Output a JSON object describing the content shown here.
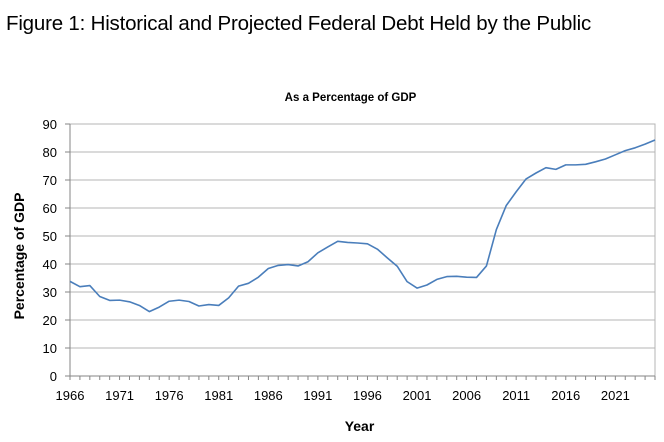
{
  "figure": {
    "title": "Figure 1: Historical and Projected Federal Debt Held by the Public"
  },
  "chart_data": {
    "type": "line",
    "title": "As a Percentage of GDP",
    "xlabel": "Year",
    "ylabel": "Percentage of GDP",
    "xlim": [
      1966,
      2025
    ],
    "ylim": [
      0,
      90
    ],
    "xticks": [
      1966,
      1971,
      1976,
      1981,
      1986,
      1991,
      1996,
      2001,
      2006,
      2011,
      2016,
      2021
    ],
    "yticks": [
      0,
      10,
      20,
      30,
      40,
      50,
      60,
      70,
      80,
      90
    ],
    "grid": true,
    "legend": "none",
    "series": [
      {
        "name": "Debt Held by the Public",
        "color": "#4a7ebb",
        "x": [
          1966,
          1967,
          1968,
          1969,
          1970,
          1971,
          1972,
          1973,
          1974,
          1975,
          1976,
          1977,
          1978,
          1979,
          1980,
          1981,
          1982,
          1983,
          1984,
          1985,
          1986,
          1987,
          1988,
          1989,
          1990,
          1991,
          1992,
          1993,
          1994,
          1995,
          1996,
          1997,
          1998,
          1999,
          2000,
          2001,
          2002,
          2003,
          2004,
          2005,
          2006,
          2007,
          2008,
          2009,
          2010,
          2011,
          2012,
          2013,
          2014,
          2015,
          2016,
          2017,
          2018,
          2019,
          2020,
          2021,
          2022,
          2023,
          2024,
          2025
        ],
        "values": [
          33.8,
          31.9,
          32.3,
          28.4,
          27.0,
          27.1,
          26.5,
          25.2,
          23.0,
          24.6,
          26.7,
          27.1,
          26.6,
          25.0,
          25.5,
          25.2,
          27.9,
          32.1,
          33.1,
          35.3,
          38.4,
          39.5,
          39.8,
          39.3,
          40.8,
          44.0,
          46.1,
          48.1,
          47.7,
          47.5,
          47.2,
          45.3,
          42.2,
          39.2,
          33.7,
          31.4,
          32.5,
          34.5,
          35.5,
          35.6,
          35.3,
          35.2,
          39.3,
          52.3,
          60.9,
          65.8,
          70.4,
          72.5,
          74.4,
          73.8,
          75.4,
          75.4,
          75.6,
          76.5,
          77.5,
          79.0,
          80.5,
          81.5,
          82.8,
          84.3
        ]
      }
    ]
  }
}
